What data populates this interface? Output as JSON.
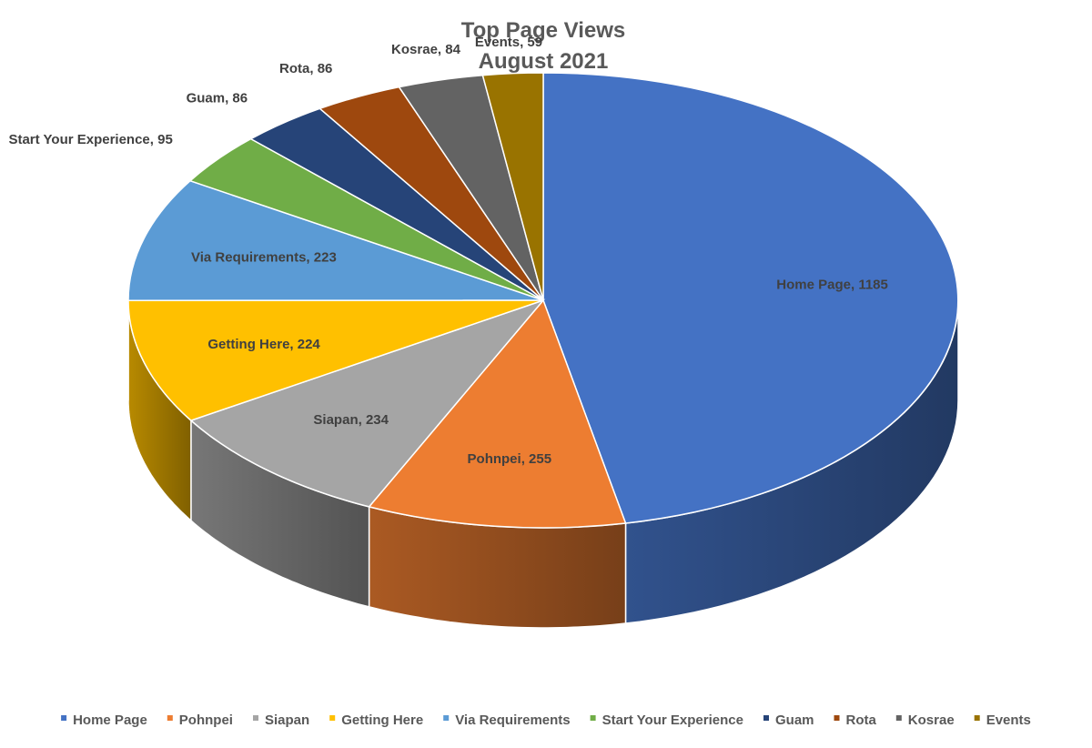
{
  "chart_data": {
    "type": "pie",
    "title": [
      "Top Page Views",
      "August 2021"
    ],
    "categories": [
      "Home Page",
      "Pohnpei",
      "Siapan",
      "Getting Here",
      "Via Requirements",
      "Start Your Experience",
      "Guam",
      "Rota",
      "Kosrae",
      "Events"
    ],
    "values": [
      1185,
      255,
      234,
      224,
      223,
      95,
      86,
      86,
      84,
      59
    ],
    "colors": [
      "#4472c4",
      "#ed7d31",
      "#a5a5a5",
      "#ffc000",
      "#5b9bd5",
      "#70ad47",
      "#264478",
      "#9e480e",
      "#636363",
      "#997300"
    ],
    "data_labels": [
      "Home Page, 1185",
      "Pohnpei, 255",
      "Siapan, 234",
      "Getting Here, 224",
      "Via Requirements, 223",
      "Start Your Experience, 95",
      "Guam, 86",
      "Rota, 86",
      "Kosrae, 84",
      "Events, 59"
    ],
    "legend_position": "bottom",
    "style": "3d"
  }
}
